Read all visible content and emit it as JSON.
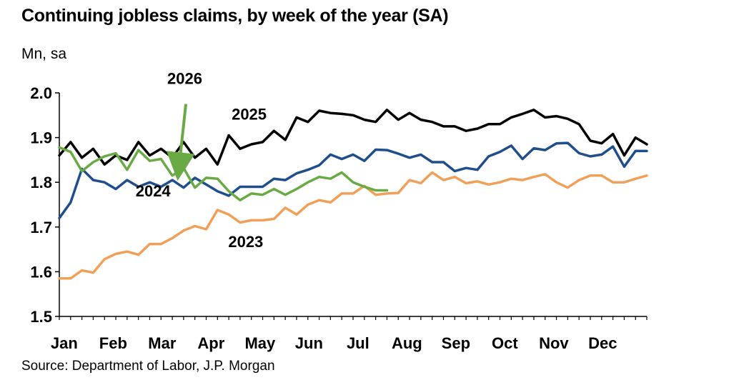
{
  "title": "Continuing jobless claims, by week of the year (SA)",
  "unit": "Mn, sa",
  "source": "Source: Department of Labor, J.P. Morgan",
  "chart_data": {
    "type": "line",
    "title": "Continuing jobless claims, by week of the year (SA)",
    "ylabel": "Mn, sa",
    "xlabel": "",
    "ylim": [
      1.5,
      2.0
    ],
    "yticks": [
      "1.5",
      "1.6",
      "1.7",
      "1.8",
      "1.9",
      "2.0"
    ],
    "xlim": [
      1,
      53
    ],
    "month_ticks": [
      "Jan",
      "Feb",
      "Mar",
      "Apr",
      "May",
      "Jun",
      "Jul",
      "Aug",
      "Sep",
      "Oct",
      "Nov",
      "Dec"
    ],
    "grid": false,
    "legend": "none",
    "annotation_arrow": {
      "from_week": 12.2,
      "from_value": 1.975,
      "to_week": 11.6,
      "to_value": 1.835,
      "color": "#6aaa45"
    },
    "series": [
      {
        "name": "2025",
        "color": "#000000",
        "label_week": 17.8,
        "label_value": 1.94,
        "x": [
          1,
          2,
          3,
          4,
          5,
          6,
          7,
          8,
          9,
          10,
          11,
          12,
          13,
          14,
          15,
          16,
          17,
          18,
          19,
          20,
          21,
          22,
          23,
          24,
          25,
          26,
          27,
          28,
          29,
          30,
          31,
          32,
          33,
          34,
          35,
          36,
          37,
          38,
          39,
          40,
          41,
          42,
          43,
          44,
          45,
          46,
          47,
          48,
          49,
          50,
          51,
          52,
          53
        ],
        "values": [
          1.86,
          1.89,
          1.855,
          1.875,
          1.84,
          1.86,
          1.85,
          1.89,
          1.86,
          1.875,
          1.855,
          1.89,
          1.855,
          1.875,
          1.84,
          1.905,
          1.875,
          1.885,
          1.89,
          1.915,
          1.895,
          1.945,
          1.935,
          1.96,
          1.955,
          1.953,
          1.95,
          1.94,
          1.935,
          1.962,
          1.94,
          1.955,
          1.94,
          1.935,
          1.925,
          1.925,
          1.915,
          1.92,
          1.93,
          1.93,
          1.945,
          1.953,
          1.962,
          1.945,
          1.948,
          1.942,
          1.93,
          1.893,
          1.887,
          1.908,
          1.86,
          1.9,
          1.885
        ]
      },
      {
        "name": "2024",
        "color": "#1f4e8c",
        "label_week": 9.3,
        "label_value": 1.768,
        "x": [
          1,
          2,
          3,
          4,
          5,
          6,
          7,
          8,
          9,
          10,
          11,
          12,
          13,
          14,
          15,
          16,
          17,
          18,
          19,
          20,
          21,
          22,
          23,
          24,
          25,
          26,
          27,
          28,
          29,
          30,
          31,
          32,
          33,
          34,
          35,
          36,
          37,
          38,
          39,
          40,
          41,
          42,
          43,
          44,
          45,
          46,
          47,
          48,
          49,
          50,
          51,
          52,
          53
        ],
        "values": [
          1.72,
          1.755,
          1.83,
          1.805,
          1.8,
          1.785,
          1.805,
          1.79,
          1.8,
          1.79,
          1.805,
          1.788,
          1.81,
          1.795,
          1.78,
          1.77,
          1.79,
          1.79,
          1.79,
          1.808,
          1.805,
          1.82,
          1.828,
          1.838,
          1.862,
          1.852,
          1.862,
          1.848,
          1.873,
          1.872,
          1.864,
          1.855,
          1.862,
          1.845,
          1.845,
          1.825,
          1.832,
          1.828,
          1.858,
          1.868,
          1.882,
          1.852,
          1.876,
          1.872,
          1.887,
          1.888,
          1.865,
          1.858,
          1.862,
          1.88,
          1.835,
          1.87,
          1.87
        ]
      },
      {
        "name": "2023",
        "color": "#f0a058",
        "label_week": 17.5,
        "label_value": 1.655,
        "x": [
          1,
          2,
          3,
          4,
          5,
          6,
          7,
          8,
          9,
          10,
          11,
          12,
          13,
          14,
          15,
          16,
          17,
          18,
          19,
          20,
          21,
          22,
          23,
          24,
          25,
          26,
          27,
          28,
          29,
          30,
          31,
          32,
          33,
          34,
          35,
          36,
          37,
          38,
          39,
          40,
          41,
          42,
          43,
          44,
          45,
          46,
          47,
          48,
          49,
          50,
          51,
          52,
          53
        ],
        "values": [
          1.585,
          1.585,
          1.603,
          1.598,
          1.628,
          1.64,
          1.645,
          1.638,
          1.662,
          1.662,
          1.675,
          1.692,
          1.702,
          1.695,
          1.738,
          1.728,
          1.71,
          1.715,
          1.715,
          1.718,
          1.743,
          1.728,
          1.75,
          1.76,
          1.755,
          1.775,
          1.775,
          1.792,
          1.772,
          1.775,
          1.776,
          1.805,
          1.798,
          1.822,
          1.805,
          1.812,
          1.798,
          1.802,
          1.795,
          1.8,
          1.808,
          1.805,
          1.812,
          1.818,
          1.8,
          1.788,
          1.805,
          1.815,
          1.815,
          1.8,
          1.8,
          1.808,
          1.815
        ]
      },
      {
        "name": "2026",
        "color": "#6aaa45",
        "label_week": 12.1,
        "label_value": 2.02,
        "x": [
          1,
          2,
          3,
          4,
          5,
          6,
          7,
          8,
          9,
          10,
          11,
          12,
          13,
          14,
          15,
          16,
          17,
          18,
          19,
          20,
          21,
          22,
          23,
          24,
          25,
          26,
          27,
          28,
          29,
          30
        ],
        "values": [
          1.878,
          1.868,
          1.825,
          1.845,
          1.858,
          1.865,
          1.828,
          1.872,
          1.848,
          1.852,
          1.815,
          1.832,
          1.788,
          1.81,
          1.808,
          1.78,
          1.76,
          1.775,
          1.772,
          1.785,
          1.772,
          1.785,
          1.8,
          1.812,
          1.808,
          1.822,
          1.8,
          1.79,
          1.782,
          1.782
        ]
      }
    ]
  }
}
